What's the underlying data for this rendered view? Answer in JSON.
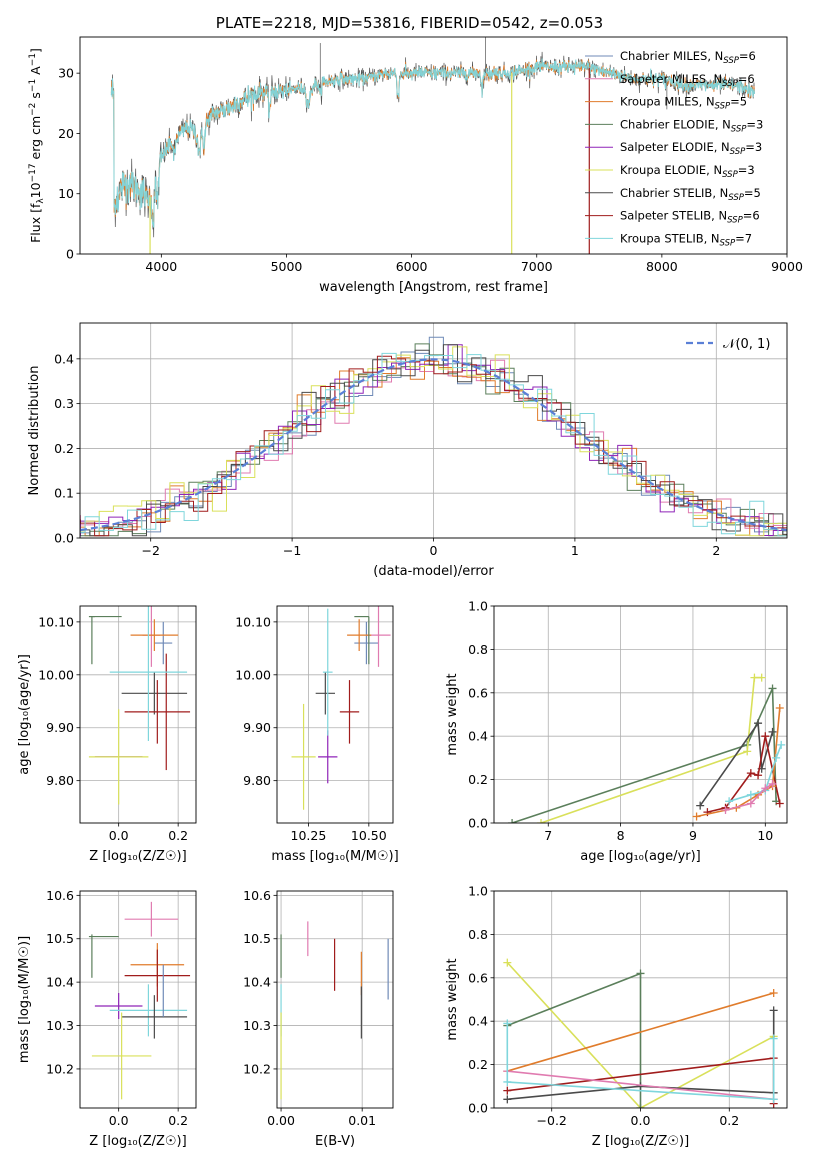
{
  "colors": {
    "Chabrier MILES": "#6f8ab7",
    "Salpeter MILES": "#e07bb0",
    "Kroupa MILES": "#e07c2c",
    "Chabrier ELODIE": "#5b7f5b",
    "Salpeter ELODIE": "#8f24b8",
    "Kroupa ELODIE": "#d9e05a",
    "Chabrier STELIB": "#4a4a4a",
    "Salpeter STELIB": "#a01c1c",
    "Kroupa STELIB": "#7fd6dc"
  },
  "chart_data": [
    {
      "id": "spectrum",
      "type": "line",
      "title": "PLATE=2218, MJD=53816, FIBERID=0542, z=0.053",
      "xlabel": "wavelength [Angstrom, rest frame]",
      "ylabel": "Flux [f_λ 10^-17 erg cm^-2 s^-1 A^-1]",
      "xlim": [
        3350,
        9000
      ],
      "ylim": [
        0,
        36
      ],
      "xticks": [
        4000,
        5000,
        6000,
        7000,
        8000,
        9000
      ],
      "yticks": [
        0,
        10,
        20,
        30
      ],
      "legend_position": "top-right",
      "legend": [
        {
          "label": "Chabrier MILES, N",
          "sub": "SSP",
          "suffix": "=6"
        },
        {
          "label": "Salpeter MILES, N",
          "sub": "SSP",
          "suffix": "=6"
        },
        {
          "label": "Kroupa MILES, N",
          "sub": "SSP",
          "suffix": "=5"
        },
        {
          "label": "Chabrier ELODIE, N",
          "sub": "SSP",
          "suffix": "=3"
        },
        {
          "label": "Salpeter ELODIE, N",
          "sub": "SSP",
          "suffix": "=3"
        },
        {
          "label": "Kroupa ELODIE, N",
          "sub": "SSP",
          "suffix": "=3"
        },
        {
          "label": "Chabrier STELIB, N",
          "sub": "SSP",
          "suffix": "=5"
        },
        {
          "label": "Salpeter STELIB, N",
          "sub": "SSP",
          "suffix": "=6"
        },
        {
          "label": "Kroupa STELIB, N",
          "sub": "SSP",
          "suffix": "=7"
        }
      ],
      "continuum": [
        [
          3620,
          8
        ],
        [
          3680,
          11
        ],
        [
          3750,
          12
        ],
        [
          3850,
          10
        ],
        [
          3900,
          9
        ],
        [
          3960,
          12
        ],
        [
          4000,
          16
        ],
        [
          4100,
          19
        ],
        [
          4200,
          21
        ],
        [
          4300,
          20
        ],
        [
          4400,
          23
        ],
        [
          4600,
          25
        ],
        [
          4800,
          27
        ],
        [
          5000,
          27
        ],
        [
          5200,
          28
        ],
        [
          5400,
          29
        ],
        [
          5600,
          29
        ],
        [
          5800,
          30
        ],
        [
          6000,
          30
        ],
        [
          6200,
          30
        ],
        [
          6400,
          30
        ],
        [
          6600,
          30
        ],
        [
          6800,
          30
        ],
        [
          7000,
          31
        ],
        [
          7200,
          31
        ],
        [
          7400,
          31
        ],
        [
          7600,
          30
        ],
        [
          7800,
          29
        ],
        [
          8000,
          29
        ],
        [
          8200,
          28
        ],
        [
          8400,
          28
        ],
        [
          8600,
          28
        ],
        [
          8700,
          27
        ]
      ],
      "spikes_down": [
        {
          "x": 3910,
          "y": 0,
          "series": "Kroupa ELODIE"
        },
        {
          "x": 6800,
          "y": 0,
          "series": "Kroupa ELODIE"
        },
        {
          "x": 7420,
          "y": 0,
          "series": "Salpeter STELIB"
        }
      ]
    },
    {
      "id": "residuals",
      "type": "step",
      "xlabel": "(data-model)/error",
      "ylabel": "Normed distribution",
      "xlim": [
        -2.5,
        2.5
      ],
      "ylim": [
        0,
        0.48
      ],
      "xticks": [
        -2,
        -1,
        0,
        1,
        2
      ],
      "yticks": [
        0.0,
        0.1,
        0.2,
        0.3,
        0.4
      ],
      "grid": true,
      "legend_position": "top-right",
      "legend_label": "𝒩(0, 1)",
      "reference_curve": "gaussian(0,1)",
      "bin_width": 0.1
    },
    {
      "id": "age-vs-Z",
      "type": "errorbar",
      "xlabel": "Z [log₁₀(Z/Z☉)]",
      "ylabel": "age  [log₁₀(age/yr)]",
      "xlim": [
        -0.13,
        0.26
      ],
      "ylim": [
        9.72,
        10.13
      ],
      "xticks": [
        0.0,
        0.2
      ],
      "yticks": [
        9.8,
        9.9,
        10.0,
        10.1
      ],
      "grid": true,
      "points": [
        {
          "series": "Chabrier MILES",
          "x": 0.15,
          "xerr": 0.03,
          "y": 10.06,
          "yerr": 0.04
        },
        {
          "series": "Salpeter MILES",
          "x": 0.11,
          "xerr": 0.03,
          "y": 10.075,
          "yerr": 0.06
        },
        {
          "series": "Kroupa MILES",
          "x": 0.12,
          "xerr": 0.08,
          "y": 10.075,
          "yerr": 0.03
        },
        {
          "series": "Chabrier ELODIE",
          "x": -0.09,
          "xerr": 0.01,
          "y": 10.11,
          "yerr": 0.0
        },
        {
          "series": "Chabrier ELODIE",
          "x": -0.04,
          "xerr": 0.05,
          "y": 10.11,
          "yerr": 0.0
        },
        {
          "series": "Chabrier ELODIE",
          "x": -0.09,
          "xerr": 0.0,
          "y": 10.065,
          "yerr": 0.045
        },
        {
          "series": "Salpeter ELODIE",
          "x": 0.0,
          "xerr": 0.08,
          "y": 9.845,
          "yerr": 0.0
        },
        {
          "series": "Kroupa ELODIE",
          "x": 0.0,
          "xerr": 0.1,
          "y": 9.845,
          "yerr": 0.09
        },
        {
          "series": "Chabrier STELIB",
          "x": 0.12,
          "xerr": 0.11,
          "y": 9.965,
          "yerr": 0.04
        },
        {
          "series": "Salpeter STELIB",
          "x": 0.13,
          "xerr": 0.11,
          "y": 9.93,
          "yerr": 0.06
        },
        {
          "series": "Salpeter STELIB",
          "x": 0.16,
          "xerr": 0.0,
          "y": 9.93,
          "yerr": 0.11
        },
        {
          "series": "Kroupa STELIB",
          "x": 0.1,
          "xerr": 0.13,
          "y": 10.005,
          "yerr": 0.13
        }
      ]
    },
    {
      "id": "age-vs-mass",
      "type": "errorbar",
      "xlabel": "mass [log₁₀(M/M☉)]",
      "ylabel": "",
      "xlim": [
        10.12,
        10.6
      ],
      "ylim": [
        9.72,
        10.13
      ],
      "xticks": [
        10.25,
        10.5
      ],
      "yticks": [
        9.8,
        9.9,
        10.0,
        10.1
      ],
      "grid": true,
      "points": [
        {
          "series": "Chabrier MILES",
          "x": 10.49,
          "xerr": 0.05,
          "y": 10.06,
          "yerr": 0.04
        },
        {
          "series": "Salpeter MILES",
          "x": 10.54,
          "xerr": 0.05,
          "y": 10.075,
          "yerr": 0.06
        },
        {
          "series": "Kroupa MILES",
          "x": 10.46,
          "xerr": 0.05,
          "y": 10.075,
          "yerr": 0.03
        },
        {
          "series": "Chabrier ELODIE",
          "x": 10.5,
          "xerr": 0.0,
          "y": 10.065,
          "yerr": 0.045
        },
        {
          "series": "Chabrier ELODIE",
          "x": 10.47,
          "xerr": 0.03,
          "y": 10.11,
          "yerr": 0.0
        },
        {
          "series": "Salpeter ELODIE",
          "x": 10.33,
          "xerr": 0.04,
          "y": 9.845,
          "yerr": 0.05
        },
        {
          "series": "Kroupa ELODIE",
          "x": 10.23,
          "xerr": 0.05,
          "y": 9.845,
          "yerr": 0.1
        },
        {
          "series": "Chabrier STELIB",
          "x": 10.32,
          "xerr": 0.04,
          "y": 9.965,
          "yerr": 0.04
        },
        {
          "series": "Salpeter STELIB",
          "x": 10.42,
          "xerr": 0.04,
          "y": 9.93,
          "yerr": 0.06
        },
        {
          "series": "Kroupa STELIB",
          "x": 10.33,
          "xerr": 0.02,
          "y": 10.005,
          "yerr": 0.12
        }
      ]
    },
    {
      "id": "weight-vs-age",
      "type": "line",
      "xlabel": "age  [log₁₀(age/yr)]",
      "ylabel": "mass weight",
      "xlim": [
        6.25,
        10.3
      ],
      "ylim": [
        0,
        1
      ],
      "xticks": [
        7,
        8,
        9,
        10
      ],
      "yticks": [
        0.0,
        0.2,
        0.4,
        0.6,
        0.8,
        1.0
      ],
      "grid": true,
      "series": [
        {
          "name": "Chabrier ELODIE",
          "x": [
            6.5,
            9.75,
            10.1,
            10.15
          ],
          "y": [
            0.0,
            0.36,
            0.62,
            0.1
          ]
        },
        {
          "name": "Kroupa ELODIE",
          "x": [
            6.9,
            9.75,
            9.85,
            9.95
          ],
          "y": [
            0.0,
            0.33,
            0.67,
            0.67
          ]
        },
        {
          "name": "Chabrier STELIB",
          "x": [
            9.1,
            9.9,
            9.95,
            10.1
          ],
          "y": [
            0.08,
            0.46,
            0.25,
            0.42
          ]
        },
        {
          "name": "Salpeter STELIB",
          "x": [
            9.2,
            9.45,
            9.8,
            9.9,
            10.0,
            10.2
          ],
          "y": [
            0.05,
            0.07,
            0.23,
            0.22,
            0.4,
            0.09
          ]
        },
        {
          "name": "Kroupa MILES",
          "x": [
            9.05,
            9.6,
            9.9,
            10.1,
            10.2
          ],
          "y": [
            0.03,
            0.07,
            0.13,
            0.17,
            0.53
          ]
        },
        {
          "name": "Kroupa STELIB",
          "x": [
            9.5,
            9.8,
            10.0,
            10.15,
            10.22
          ],
          "y": [
            0.1,
            0.13,
            0.15,
            0.3,
            0.36
          ]
        },
        {
          "name": "Salpeter MILES",
          "x": [
            9.45,
            9.8,
            10.0,
            10.1
          ],
          "y": [
            0.06,
            0.09,
            0.16,
            0.18
          ]
        }
      ]
    },
    {
      "id": "mass-vs-Z",
      "type": "errorbar",
      "xlabel": "Z [log₁₀(Z/Z☉)]",
      "ylabel": "mass [log₁₀(M/M☉)]",
      "xlim": [
        -0.13,
        0.26
      ],
      "ylim": [
        10.11,
        10.61
      ],
      "xticks": [
        0.0,
        0.2
      ],
      "yticks": [
        10.2,
        10.3,
        10.4,
        10.5,
        10.6
      ],
      "grid": true,
      "points": [
        {
          "series": "Salpeter MILES",
          "x": 0.11,
          "xerr": 0.09,
          "y": 10.545,
          "yerr": 0.04
        },
        {
          "series": "Chabrier ELODIE",
          "x": -0.05,
          "xerr": 0.05,
          "y": 10.505,
          "yerr": 0.0
        },
        {
          "series": "Chabrier ELODIE",
          "x": -0.09,
          "xerr": 0.0,
          "y": 10.46,
          "yerr": 0.05
        },
        {
          "series": "Kroupa MILES",
          "x": 0.13,
          "xerr": 0.09,
          "y": 10.44,
          "yerr": 0.05
        },
        {
          "series": "Salpeter STELIB",
          "x": 0.13,
          "xerr": 0.11,
          "y": 10.415,
          "yerr": 0.06
        },
        {
          "series": "Salpeter ELODIE",
          "x": 0.0,
          "xerr": 0.08,
          "y": 10.345,
          "yerr": 0.03
        },
        {
          "series": "Kroupa STELIB",
          "x": 0.1,
          "xerr": 0.13,
          "y": 10.335,
          "yerr": 0.06
        },
        {
          "series": "Chabrier STELIB",
          "x": 0.12,
          "xerr": 0.11,
          "y": 10.32,
          "yerr": 0.05
        },
        {
          "series": "Chabrier MILES",
          "x": 0.15,
          "xerr": 0.0,
          "y": 10.38,
          "yerr": 0.06
        },
        {
          "series": "Kroupa ELODIE",
          "x": 0.01,
          "xerr": 0.1,
          "y": 10.23,
          "yerr": 0.1
        }
      ]
    },
    {
      "id": "mass-vs-ebv",
      "type": "errorbar",
      "xlabel": "E(B-V)",
      "ylabel": "",
      "xlim": [
        -0.0005,
        0.0138
      ],
      "ylim": [
        10.11,
        10.61
      ],
      "xticks": [
        0.0,
        0.01
      ],
      "yticks": [
        10.2,
        10.3,
        10.4,
        10.5,
        10.6
      ],
      "grid": true,
      "points": [
        {
          "series": "Chabrier ELODIE",
          "x": 0.0,
          "xerr": 0.0,
          "y": 10.46,
          "yerr": 0.05
        },
        {
          "series": "Kroupa STELIB",
          "x": 0.0,
          "xerr": 0.0,
          "y": 10.335,
          "yerr": 0.06
        },
        {
          "series": "Kroupa ELODIE",
          "x": 0.0,
          "xerr": 0.0,
          "y": 10.23,
          "yerr": 0.1
        },
        {
          "series": "Salpeter MILES",
          "x": 0.0033,
          "xerr": 0.0,
          "y": 10.5,
          "yerr": 0.04
        },
        {
          "series": "Salpeter STELIB",
          "x": 0.0066,
          "xerr": 0.0,
          "y": 10.44,
          "yerr": 0.06
        },
        {
          "series": "Kroupa MILES",
          "x": 0.0099,
          "xerr": 0.0,
          "y": 10.42,
          "yerr": 0.05
        },
        {
          "series": "Chabrier STELIB",
          "x": 0.0099,
          "xerr": 0.0,
          "y": 10.33,
          "yerr": 0.06
        },
        {
          "series": "Chabrier MILES",
          "x": 0.0132,
          "xerr": 0.0,
          "y": 10.43,
          "yerr": 0.07
        }
      ]
    },
    {
      "id": "weight-vs-Z",
      "type": "line",
      "xlabel": "Z [log₁₀(Z/Z☉)]",
      "ylabel": "mass weight",
      "xlim": [
        -0.33,
        0.33
      ],
      "ylim": [
        0,
        1
      ],
      "xticks": [
        -0.2,
        0.0,
        0.2
      ],
      "yticks": [
        0.0,
        0.2,
        0.4,
        0.6,
        0.8,
        1.0
      ],
      "grid": true,
      "series": [
        {
          "name": "Kroupa ELODIE",
          "x": [
            -0.3,
            0.0,
            0.3
          ],
          "y": [
            0.67,
            0.0,
            0.33
          ]
        },
        {
          "name": "Chabrier ELODIE",
          "x": [
            -0.3,
            0.0,
            0.0
          ],
          "y": [
            0.38,
            0.62,
            0.0
          ]
        },
        {
          "name": "Kroupa MILES",
          "x": [
            -0.3,
            0.3
          ],
          "y": [
            0.17,
            0.53
          ]
        },
        {
          "name": "Salpeter STELIB",
          "x": [
            -0.3,
            0.3,
            0.3
          ],
          "y": [
            0.08,
            0.23,
            0.02
          ]
        },
        {
          "name": "Chabrier STELIB",
          "x": [
            -0.3,
            0.0,
            0.3,
            0.3
          ],
          "y": [
            0.04,
            0.1,
            0.07,
            0.45
          ]
        },
        {
          "name": "Salpeter MILES",
          "x": [
            -0.3,
            0.3
          ],
          "y": [
            0.17,
            0.04
          ]
        },
        {
          "name": "Kroupa STELIB",
          "x": [
            -0.3,
            -0.3,
            0.3,
            0.3
          ],
          "y": [
            0.39,
            0.12,
            0.04,
            0.32
          ]
        }
      ]
    }
  ]
}
